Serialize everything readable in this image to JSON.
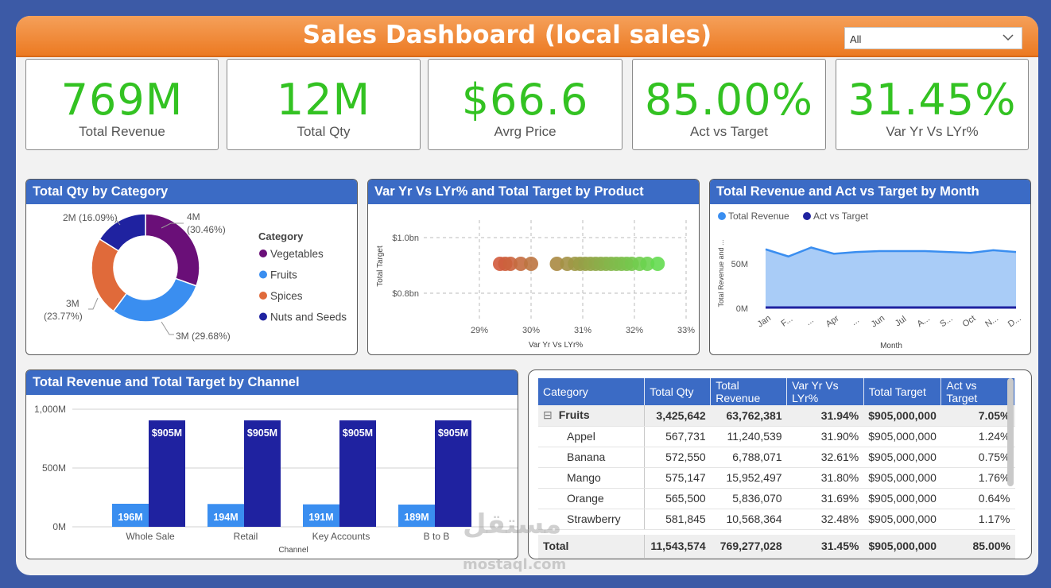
{
  "header": {
    "title": "Sales Dashboard (local sales)",
    "slicer_value": "All"
  },
  "kpis": [
    {
      "value": "769M",
      "label": "Total Revenue"
    },
    {
      "value": "12M",
      "label": "Total Qty"
    },
    {
      "value": "$66.6",
      "label": "Avrg Price"
    },
    {
      "value": "85.00%",
      "label": "Act vs Target"
    },
    {
      "value": "31.45%",
      "label": "Var Yr Vs LYr%"
    }
  ],
  "donut": {
    "title": "Total Qty by Category",
    "legend_title": "Category",
    "labels": {
      "veg": "4M",
      "veg_pct": "(30.46%)",
      "fruits": "3M (29.68%)",
      "spices": "3M",
      "spices_pct": "(23.77%)",
      "nuts": "2M (16.09%)"
    }
  },
  "scatter": {
    "title": "Var Yr Vs LYr% and Total Target by Product"
  },
  "area": {
    "title": "Total Revenue and Act vs Target by Month",
    "legend": [
      "Total Revenue",
      "Act vs Target"
    ]
  },
  "bar": {
    "title": "Total Revenue and Total Target by Channel"
  },
  "table": {
    "headers": [
      "Category",
      "Total Qty",
      "Total Revenue",
      "Var Yr Vs LYr%",
      "Total Target",
      "Act vs Target"
    ],
    "group": {
      "expander": "⊟",
      "cells": [
        "Fruits",
        "3,425,642",
        "63,762,381",
        "31.94%",
        "$905,000,000",
        "7.05%"
      ]
    },
    "rows": [
      [
        "Appel",
        "567,731",
        "11,240,539",
        "31.90%",
        "$905,000,000",
        "1.24%"
      ],
      [
        "Banana",
        "572,550",
        "6,788,071",
        "32.61%",
        "$905,000,000",
        "0.75%"
      ],
      [
        "Mango",
        "575,147",
        "15,952,497",
        "31.80%",
        "$905,000,000",
        "1.76%"
      ],
      [
        "Orange",
        "565,500",
        "5,836,070",
        "31.69%",
        "$905,000,000",
        "0.64%"
      ],
      [
        "Strawberry",
        "581,845",
        "10,568,364",
        "32.48%",
        "$905,000,000",
        "1.17%"
      ]
    ],
    "total": [
      "Total",
      "11,543,574",
      "769,277,028",
      "31.45%",
      "$905,000,000",
      "85.00%"
    ]
  },
  "watermark": {
    "arabic": "مستقل",
    "latin": "mostaql.com"
  },
  "colors": {
    "orange": "#ec7a22",
    "green": "#33c222",
    "blue_header": "#3b6bc5",
    "navy": "#1f22a0",
    "light_blue": "#3a8ef0",
    "purple": "#6a0f78",
    "spices": "#e06a3a"
  },
  "chart_data": [
    {
      "type": "pie",
      "title": "Total Qty by Category",
      "legend_title": "Category",
      "categories": [
        "Vegetables",
        "Fruits",
        "Spices",
        "Nuts and Seeds"
      ],
      "values": [
        30.46,
        29.68,
        23.77,
        16.09
      ],
      "value_labels": [
        "4M",
        "3M",
        "3M",
        "2M"
      ],
      "colors": [
        "#6a0f78",
        "#3a8ef0",
        "#e06a3a",
        "#1f22a0"
      ],
      "legend_position": "right"
    },
    {
      "type": "scatter",
      "title": "Var Yr Vs LYr% and Total Target by Product",
      "xlabel": "Var Yr Vs LYr%",
      "ylabel": "Total Target",
      "x_ticks": [
        "29%",
        "30%",
        "31%",
        "32%",
        "33%"
      ],
      "y_ticks": [
        "$1.0bn",
        "$0.8bn"
      ],
      "xlim": [
        29,
        33
      ],
      "ylim": [
        0.8,
        1.0
      ],
      "y": 0.905,
      "x": [
        29.4,
        29.5,
        29.6,
        29.8,
        30.0,
        30.5,
        30.7,
        30.85,
        30.95,
        31.05,
        31.15,
        31.25,
        31.35,
        31.45,
        31.55,
        31.65,
        31.75,
        31.85,
        31.95,
        32.1,
        32.25,
        32.45
      ],
      "grid": true
    },
    {
      "type": "area",
      "title": "Total Revenue and Act vs Target by Month",
      "xlabel": "Month",
      "ylabel": "Total Revenue and ...",
      "categories": [
        "Jan",
        "F...",
        "...",
        "Apr",
        "...",
        "Jun",
        "Jul",
        "A...",
        "S...",
        "Oct",
        "N...",
        "D..."
      ],
      "y_ticks": [
        "50M",
        "0M"
      ],
      "series": [
        {
          "name": "Total Revenue",
          "values": [
            66,
            58,
            68,
            61,
            63,
            64,
            64,
            64,
            63,
            62,
            65,
            63
          ]
        },
        {
          "name": "Act vs Target",
          "values": [
            0.85,
            0.85,
            0.85,
            0.85,
            0.85,
            0.85,
            0.85,
            0.85,
            0.85,
            0.85,
            0.85,
            0.85
          ]
        }
      ],
      "legend_position": "top-left"
    },
    {
      "type": "bar",
      "title": "Total Revenue and Total Target by Channel",
      "xlabel": "Channel",
      "categories": [
        "Whole Sale",
        "Retail",
        "Key Accounts",
        "B to B"
      ],
      "y_ticks": [
        "1,000M",
        "500M",
        "0M"
      ],
      "ylim": [
        0,
        1000
      ],
      "series": [
        {
          "values": [
            196,
            194,
            191,
            189
          ],
          "labels": [
            "196M",
            "194M",
            "191M",
            "189M"
          ]
        },
        {
          "values": [
            905,
            905,
            905,
            905
          ],
          "labels": [
            "$905M",
            "$905M",
            "$905M",
            "$905M"
          ]
        }
      ]
    }
  ]
}
